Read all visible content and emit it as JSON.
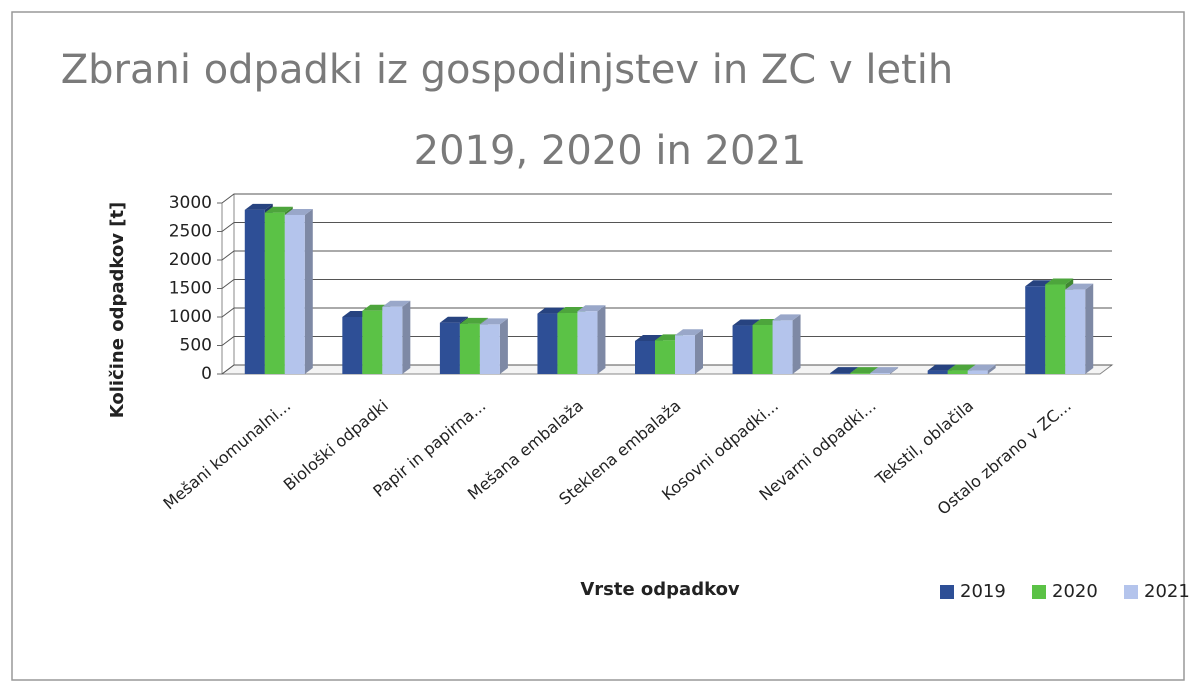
{
  "chart_data": {
    "type": "bar3d",
    "title": [
      "Zbrani odpadki iz gospodinjstev in ZC v letih",
      "2019, 2020 in 2021"
    ],
    "y_label": "Količine odpadkov [t]",
    "x_label": "Vrste odpadkov",
    "categories": [
      "Mešani komunalni...",
      "Biološki odpadki",
      "Papir in papirna...",
      "Mešana embalaža",
      "Steklena embalaža",
      "Kosovni odpadki...",
      "Nevarni odpadki...",
      "Tekstil, oblačila",
      "Ostalo zbrano v ZC..."
    ],
    "series": [
      {
        "name": "2019",
        "color": "#2e4f96",
        "values": [
          2880,
          1000,
          900,
          1060,
          580,
          850,
          15,
          60,
          1540
        ]
      },
      {
        "name": "2020",
        "color": "#5bc246",
        "values": [
          2830,
          1110,
          880,
          1070,
          590,
          860,
          15,
          60,
          1570
        ]
      },
      {
        "name": "2021",
        "color": "#b4c4ec",
        "values": [
          2790,
          1180,
          870,
          1100,
          680,
          940,
          15,
          60,
          1480
        ]
      }
    ],
    "ylim": [
      0,
      3000
    ],
    "yticks": [
      0,
      500,
      1000,
      1500,
      2000,
      2500,
      3000
    ],
    "grid": true,
    "legend": "bottom-right"
  }
}
